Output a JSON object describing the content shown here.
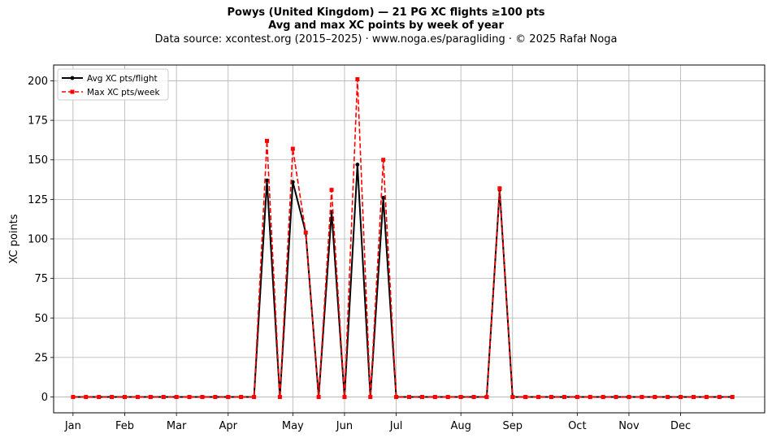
{
  "chart_data": {
    "type": "line",
    "title": "Powys (United Kingdom)  —  21 PG XC flights ≥100 pts",
    "subtitle": "Avg and max XC points by week of year",
    "source": "Data source: xcontest.org (2015–2025)  ·  www.noga.es/paragliding  ·  © 2025 Rafał Noga",
    "xlabel": "",
    "ylabel": "XC points",
    "ylim": [
      -10,
      210
    ],
    "xlim": [
      -0.5,
      54.5
    ],
    "yticks": [
      0,
      25,
      50,
      75,
      100,
      125,
      150,
      175,
      200
    ],
    "month_ticks": [
      {
        "label": "Jan",
        "week": 1
      },
      {
        "label": "Feb",
        "week": 5
      },
      {
        "label": "Mar",
        "week": 9
      },
      {
        "label": "Apr",
        "week": 13
      },
      {
        "label": "May",
        "week": 18
      },
      {
        "label": "Jun",
        "week": 22
      },
      {
        "label": "Jul",
        "week": 26
      },
      {
        "label": "Aug",
        "week": 31
      },
      {
        "label": "Sep",
        "week": 35
      },
      {
        "label": "Oct",
        "week": 40
      },
      {
        "label": "Nov",
        "week": 44
      },
      {
        "label": "Dec",
        "week": 48
      }
    ],
    "grid": true,
    "legend_position": "top-left",
    "x": [
      1,
      2,
      3,
      4,
      5,
      6,
      7,
      8,
      9,
      10,
      11,
      12,
      13,
      14,
      15,
      16,
      17,
      18,
      19,
      20,
      21,
      22,
      23,
      24,
      25,
      26,
      27,
      28,
      29,
      30,
      31,
      32,
      33,
      34,
      35,
      36,
      37,
      38,
      39,
      40,
      41,
      42,
      43,
      44,
      45,
      46,
      47,
      48,
      49,
      50,
      51,
      52
    ],
    "series": [
      {
        "name": "Avg XC pts/flight",
        "color": "#000000",
        "style": "solid-circle",
        "values": [
          0,
          0,
          0,
          0,
          0,
          0,
          0,
          0,
          0,
          0,
          0,
          0,
          0,
          0,
          0,
          137,
          0,
          136,
          104,
          0,
          117,
          0,
          147,
          0,
          126,
          0,
          0,
          0,
          0,
          0,
          0,
          0,
          0,
          131,
          0,
          0,
          0,
          0,
          0,
          0,
          0,
          0,
          0,
          0,
          0,
          0,
          0,
          0,
          0,
          0,
          0,
          0
        ]
      },
      {
        "name": "Max XC pts/week",
        "color": "#ff0000",
        "style": "dashed-square",
        "values": [
          0,
          0,
          0,
          0,
          0,
          0,
          0,
          0,
          0,
          0,
          0,
          0,
          0,
          0,
          0,
          162,
          0,
          157,
          104,
          0,
          131,
          0,
          201,
          0,
          150,
          0,
          0,
          0,
          0,
          0,
          0,
          0,
          0,
          132,
          0,
          0,
          0,
          0,
          0,
          0,
          0,
          0,
          0,
          0,
          0,
          0,
          0,
          0,
          0,
          0,
          0,
          0
        ]
      }
    ]
  }
}
